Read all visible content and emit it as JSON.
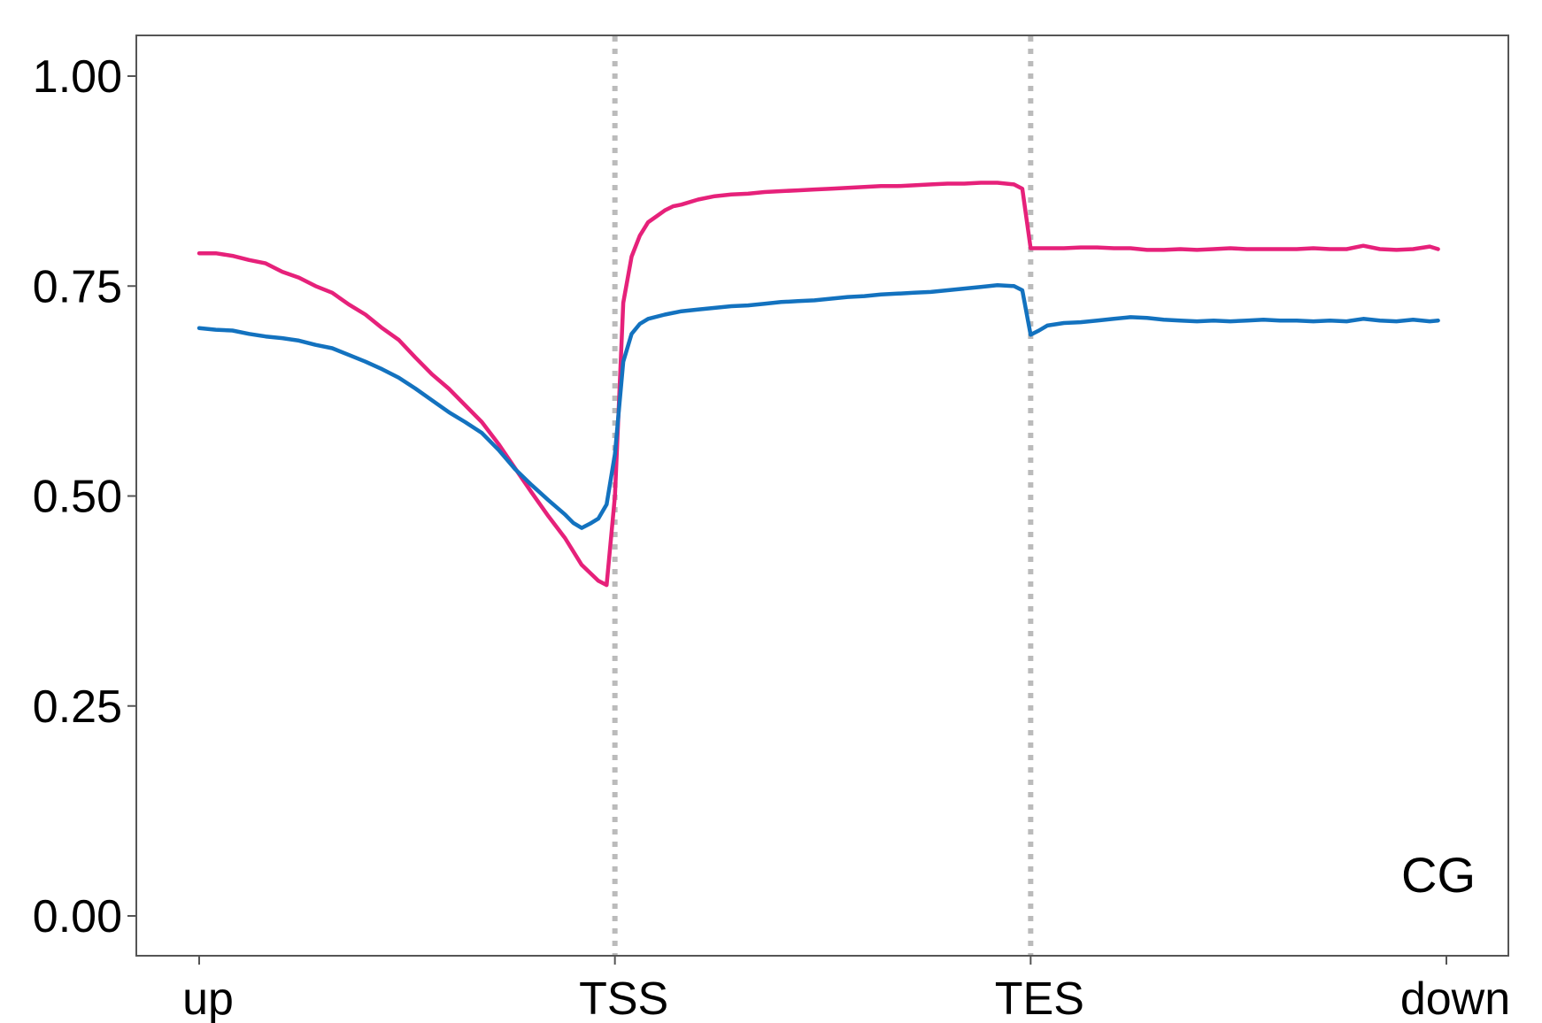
{
  "chart_data": {
    "type": "line",
    "title": "",
    "xlabel": "",
    "ylabel": "",
    "annotation": "CG",
    "xlim": [
      0,
      150
    ],
    "ylim": [
      -0.05,
      1.05
    ],
    "x_ticks": [
      {
        "value": 0,
        "label": "up"
      },
      {
        "value": 50,
        "label": "TSS"
      },
      {
        "value": 100,
        "label": "TES"
      },
      {
        "value": 150,
        "label": "down"
      }
    ],
    "y_ticks": [
      {
        "value": 0.0,
        "label": "0.00"
      },
      {
        "value": 0.25,
        "label": "0.25"
      },
      {
        "value": 0.5,
        "label": "0.50"
      },
      {
        "value": 0.75,
        "label": "0.75"
      },
      {
        "value": 1.0,
        "label": "1.00"
      }
    ],
    "vlines": [
      50,
      100
    ],
    "grid": false,
    "legend": "none",
    "series": [
      {
        "color": "#E6217A",
        "points": [
          [
            0,
            0.789
          ],
          [
            2,
            0.789
          ],
          [
            4,
            0.786
          ],
          [
            6,
            0.781
          ],
          [
            8,
            0.777
          ],
          [
            10,
            0.767
          ],
          [
            12,
            0.76
          ],
          [
            14,
            0.75
          ],
          [
            16,
            0.742
          ],
          [
            18,
            0.728
          ],
          [
            20,
            0.716
          ],
          [
            22,
            0.7
          ],
          [
            24,
            0.686
          ],
          [
            26,
            0.665
          ],
          [
            28,
            0.645
          ],
          [
            30,
            0.628
          ],
          [
            32,
            0.608
          ],
          [
            34,
            0.588
          ],
          [
            36,
            0.562
          ],
          [
            38,
            0.533
          ],
          [
            40,
            0.504
          ],
          [
            42,
            0.476
          ],
          [
            44,
            0.45
          ],
          [
            46,
            0.418
          ],
          [
            48,
            0.399
          ],
          [
            49,
            0.394
          ],
          [
            50,
            0.5
          ],
          [
            51,
            0.73
          ],
          [
            52,
            0.785
          ],
          [
            53,
            0.81
          ],
          [
            54,
            0.826
          ],
          [
            55,
            0.833
          ],
          [
            56,
            0.84
          ],
          [
            57,
            0.845
          ],
          [
            58,
            0.847
          ],
          [
            60,
            0.853
          ],
          [
            62,
            0.857
          ],
          [
            64,
            0.859
          ],
          [
            66,
            0.86
          ],
          [
            68,
            0.862
          ],
          [
            70,
            0.863
          ],
          [
            72,
            0.864
          ],
          [
            74,
            0.865
          ],
          [
            76,
            0.866
          ],
          [
            78,
            0.867
          ],
          [
            80,
            0.868
          ],
          [
            82,
            0.869
          ],
          [
            84,
            0.869
          ],
          [
            86,
            0.87
          ],
          [
            88,
            0.871
          ],
          [
            90,
            0.872
          ],
          [
            92,
            0.872
          ],
          [
            94,
            0.873
          ],
          [
            96,
            0.873
          ],
          [
            98,
            0.871
          ],
          [
            99,
            0.866
          ],
          [
            100,
            0.795
          ],
          [
            102,
            0.795
          ],
          [
            104,
            0.795
          ],
          [
            106,
            0.796
          ],
          [
            108,
            0.796
          ],
          [
            110,
            0.795
          ],
          [
            112,
            0.795
          ],
          [
            114,
            0.793
          ],
          [
            116,
            0.793
          ],
          [
            118,
            0.794
          ],
          [
            120,
            0.793
          ],
          [
            122,
            0.794
          ],
          [
            124,
            0.795
          ],
          [
            126,
            0.794
          ],
          [
            128,
            0.794
          ],
          [
            130,
            0.794
          ],
          [
            132,
            0.794
          ],
          [
            134,
            0.795
          ],
          [
            136,
            0.794
          ],
          [
            138,
            0.794
          ],
          [
            140,
            0.798
          ],
          [
            142,
            0.794
          ],
          [
            144,
            0.793
          ],
          [
            146,
            0.794
          ],
          [
            148,
            0.797
          ],
          [
            149,
            0.794
          ]
        ]
      },
      {
        "color": "#1372BF",
        "points": [
          [
            0,
            0.7
          ],
          [
            2,
            0.698
          ],
          [
            4,
            0.697
          ],
          [
            6,
            0.693
          ],
          [
            8,
            0.69
          ],
          [
            10,
            0.688
          ],
          [
            12,
            0.685
          ],
          [
            14,
            0.68
          ],
          [
            16,
            0.676
          ],
          [
            18,
            0.668
          ],
          [
            20,
            0.66
          ],
          [
            22,
            0.651
          ],
          [
            24,
            0.641
          ],
          [
            26,
            0.628
          ],
          [
            28,
            0.614
          ],
          [
            30,
            0.6
          ],
          [
            32,
            0.588
          ],
          [
            34,
            0.575
          ],
          [
            36,
            0.555
          ],
          [
            38,
            0.532
          ],
          [
            40,
            0.513
          ],
          [
            42,
            0.495
          ],
          [
            44,
            0.478
          ],
          [
            45,
            0.468
          ],
          [
            46,
            0.462
          ],
          [
            47,
            0.467
          ],
          [
            48,
            0.473
          ],
          [
            49,
            0.49
          ],
          [
            50,
            0.55
          ],
          [
            51,
            0.66
          ],
          [
            52,
            0.693
          ],
          [
            53,
            0.705
          ],
          [
            54,
            0.711
          ],
          [
            56,
            0.716
          ],
          [
            58,
            0.72
          ],
          [
            60,
            0.722
          ],
          [
            62,
            0.724
          ],
          [
            64,
            0.726
          ],
          [
            66,
            0.727
          ],
          [
            68,
            0.729
          ],
          [
            70,
            0.731
          ],
          [
            72,
            0.732
          ],
          [
            74,
            0.733
          ],
          [
            76,
            0.735
          ],
          [
            78,
            0.737
          ],
          [
            80,
            0.738
          ],
          [
            82,
            0.74
          ],
          [
            84,
            0.741
          ],
          [
            86,
            0.742
          ],
          [
            88,
            0.743
          ],
          [
            90,
            0.745
          ],
          [
            92,
            0.747
          ],
          [
            94,
            0.749
          ],
          [
            96,
            0.751
          ],
          [
            98,
            0.75
          ],
          [
            99,
            0.745
          ],
          [
            100,
            0.692
          ],
          [
            101,
            0.697
          ],
          [
            102,
            0.703
          ],
          [
            104,
            0.706
          ],
          [
            106,
            0.707
          ],
          [
            108,
            0.709
          ],
          [
            110,
            0.711
          ],
          [
            112,
            0.713
          ],
          [
            114,
            0.712
          ],
          [
            116,
            0.71
          ],
          [
            118,
            0.709
          ],
          [
            120,
            0.708
          ],
          [
            122,
            0.709
          ],
          [
            124,
            0.708
          ],
          [
            126,
            0.709
          ],
          [
            128,
            0.71
          ],
          [
            130,
            0.709
          ],
          [
            132,
            0.709
          ],
          [
            134,
            0.708
          ],
          [
            136,
            0.709
          ],
          [
            138,
            0.708
          ],
          [
            140,
            0.711
          ],
          [
            142,
            0.709
          ],
          [
            144,
            0.708
          ],
          [
            146,
            0.71
          ],
          [
            148,
            0.708
          ],
          [
            149,
            0.709
          ]
        ]
      }
    ]
  },
  "colors": {
    "axis": "#555555",
    "vline": "#BBBBBB"
  }
}
